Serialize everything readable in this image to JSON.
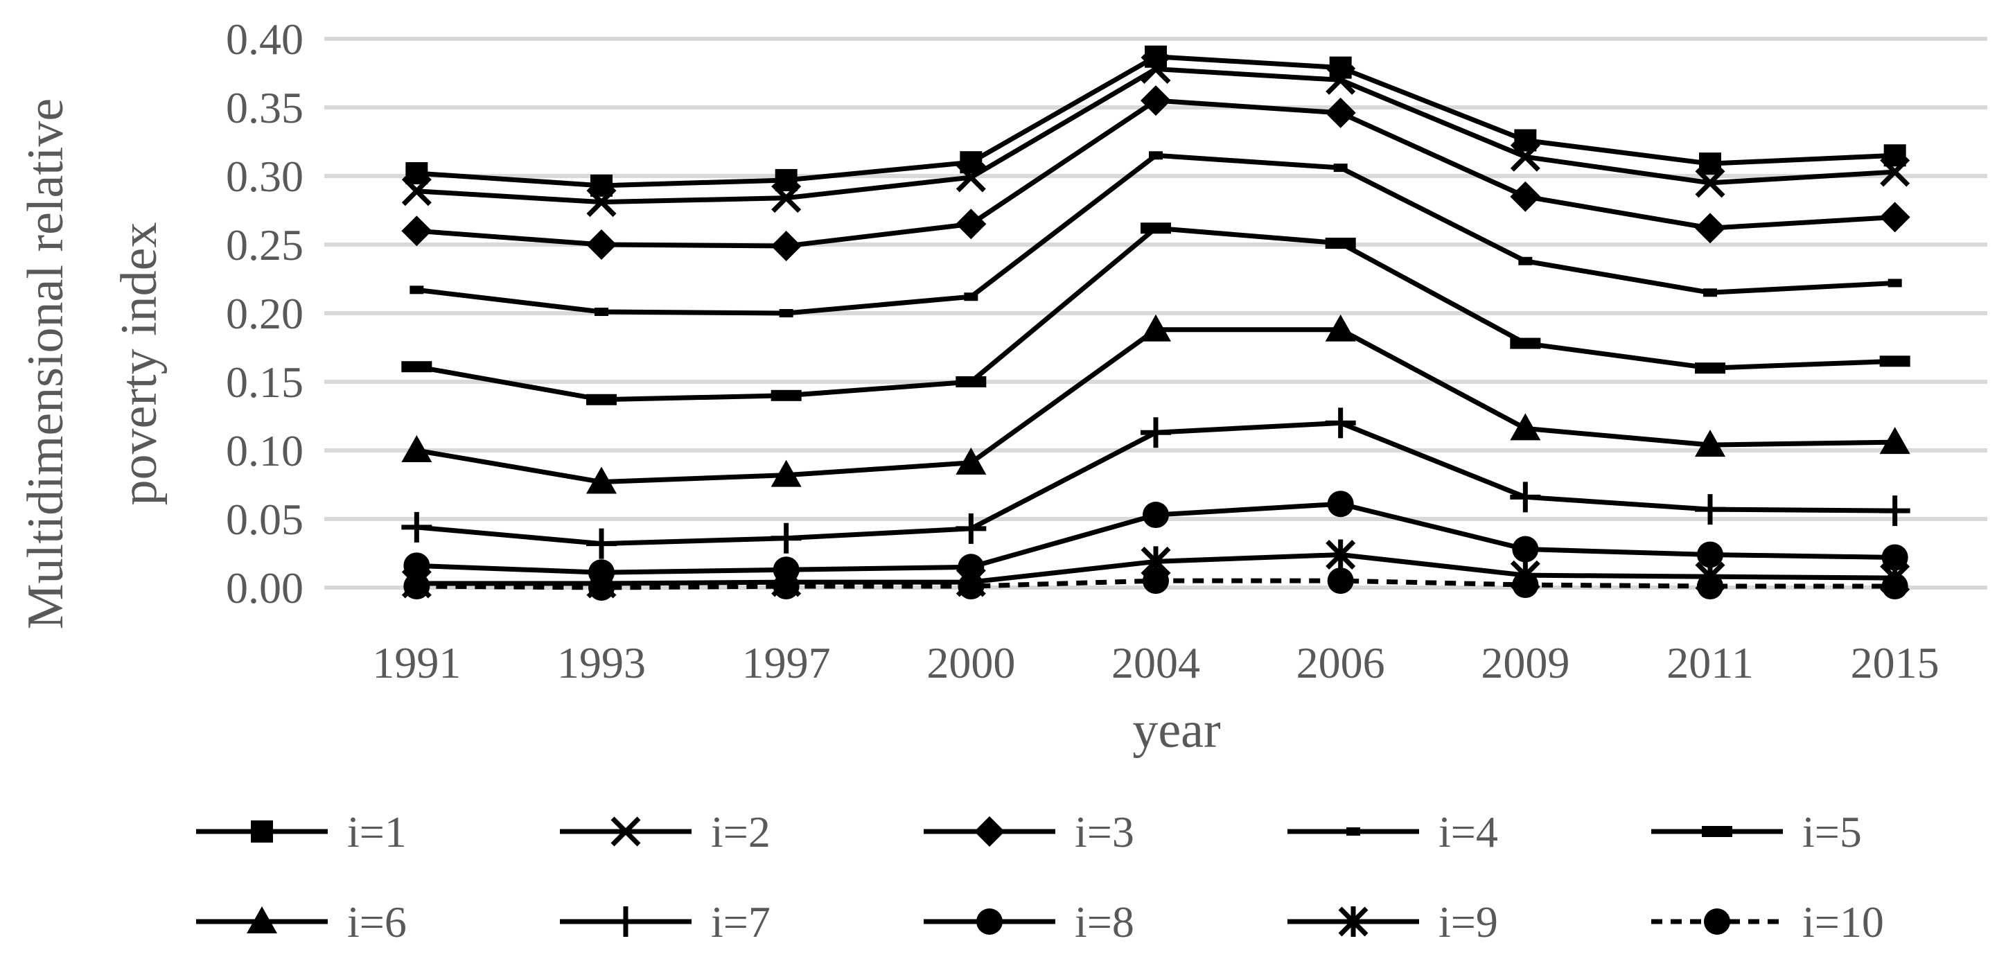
{
  "chart_data": {
    "type": "line",
    "categories": [
      "1991",
      "1993",
      "1997",
      "2000",
      "2004",
      "2006",
      "2009",
      "2011",
      "2015"
    ],
    "ylabel": "Multidimensional relative poverty index",
    "ylabel_lines": [
      "Multidimensional relative",
      "poverty index"
    ],
    "xlabel": "year",
    "ylim": [
      0,
      0.4
    ],
    "yticks": [
      "0.00",
      "0.05",
      "0.10",
      "0.15",
      "0.20",
      "0.25",
      "0.30",
      "0.35",
      "0.40"
    ],
    "grid": true,
    "legend_position": "bottom",
    "series": [
      {
        "name": "i=1",
        "marker": "square",
        "dash": "solid",
        "values": [
          0.302,
          0.293,
          0.297,
          0.31,
          0.387,
          0.379,
          0.326,
          0.309,
          0.315
        ]
      },
      {
        "name": "i=2",
        "marker": "x",
        "dash": "solid",
        "values": [
          0.289,
          0.281,
          0.284,
          0.299,
          0.378,
          0.37,
          0.314,
          0.295,
          0.303
        ]
      },
      {
        "name": "i=3",
        "marker": "diamond",
        "dash": "solid",
        "values": [
          0.26,
          0.25,
          0.249,
          0.265,
          0.355,
          0.346,
          0.285,
          0.262,
          0.27
        ]
      },
      {
        "name": "i=4",
        "marker": "dash",
        "dash": "solid",
        "values": [
          0.217,
          0.201,
          0.2,
          0.212,
          0.315,
          0.306,
          0.238,
          0.215,
          0.222
        ]
      },
      {
        "name": "i=5",
        "marker": "bar",
        "dash": "solid",
        "values": [
          0.161,
          0.137,
          0.14,
          0.15,
          0.262,
          0.251,
          0.178,
          0.16,
          0.165
        ]
      },
      {
        "name": "i=6",
        "marker": "triangle",
        "dash": "solid",
        "values": [
          0.1,
          0.077,
          0.082,
          0.091,
          0.188,
          0.188,
          0.116,
          0.104,
          0.106
        ]
      },
      {
        "name": "i=7",
        "marker": "plus",
        "dash": "solid",
        "values": [
          0.044,
          0.032,
          0.036,
          0.043,
          0.113,
          0.12,
          0.066,
          0.057,
          0.056
        ]
      },
      {
        "name": "i=8",
        "marker": "circle",
        "dash": "solid",
        "values": [
          0.016,
          0.011,
          0.013,
          0.015,
          0.053,
          0.061,
          0.028,
          0.024,
          0.022
        ]
      },
      {
        "name": "i=9",
        "marker": "asterisk",
        "dash": "solid",
        "values": [
          0.003,
          0.003,
          0.004,
          0.004,
          0.019,
          0.024,
          0.009,
          0.008,
          0.007
        ]
      },
      {
        "name": "i=10",
        "marker": "circle",
        "dash": "dashed",
        "values": [
          0.001,
          0.0,
          0.001,
          0.001,
          0.005,
          0.005,
          0.002,
          0.001,
          0.001
        ]
      }
    ]
  }
}
